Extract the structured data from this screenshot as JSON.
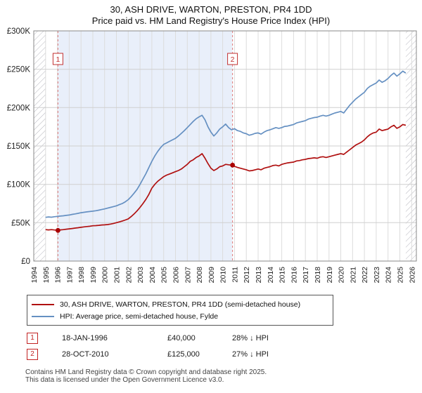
{
  "title": "30, ASH DRIVE, WARTON, PRESTON, PR4 1DD",
  "subtitle": "Price paid vs. HM Land Registry's House Price Index (HPI)",
  "chart_data": {
    "type": "line",
    "x_axis": {
      "min": 1994,
      "max": 2026.4,
      "ticks": [
        1994,
        1995,
        1996,
        1997,
        1998,
        1999,
        2000,
        2001,
        2002,
        2003,
        2004,
        2005,
        2006,
        2007,
        2008,
        2009,
        2010,
        2011,
        2012,
        2013,
        2014,
        2015,
        2016,
        2017,
        2018,
        2019,
        2020,
        2021,
        2022,
        2023,
        2024,
        2025,
        2026
      ]
    },
    "y_axis": {
      "min": 0,
      "max": 300,
      "ticks": [
        {
          "label": "£0",
          "value": 0
        },
        {
          "label": "£50K",
          "value": 50
        },
        {
          "label": "£100K",
          "value": 100
        },
        {
          "label": "£150K",
          "value": 150
        },
        {
          "label": "£200K",
          "value": 200
        },
        {
          "label": "£250K",
          "value": 250
        },
        {
          "label": "£300K",
          "value": 300
        }
      ]
    },
    "grid": true,
    "shaded_region": {
      "from": 1996.05,
      "to": 2010.83,
      "color": "#e9effa"
    },
    "hatch_regions": [
      {
        "from": 1994,
        "to": 1995.0
      },
      {
        "from": 2025.5,
        "to": 2026.4
      }
    ],
    "series": [
      {
        "name": "30, ASH DRIVE, WARTON, PRESTON, PR4 1DD (semi-detached house)",
        "color": "#b01010",
        "start": 1995,
        "step": 0.25,
        "values": [
          41,
          40.6,
          41,
          40.5,
          40.2,
          40.6,
          41,
          41.5,
          42,
          42.4,
          43,
          43.4,
          44,
          44.5,
          45,
          45.4,
          46,
          46.2,
          46.6,
          47,
          47.2,
          47.6,
          48.2,
          49,
          50,
          51,
          52.2,
          53.5,
          55,
          58,
          61.5,
          65.5,
          70,
          75,
          80.5,
          87,
          95,
          100,
          104,
          107,
          110,
          112,
          113.5,
          115,
          116.5,
          118,
          120,
          123,
          126,
          130,
          132,
          135,
          137,
          140,
          134,
          127,
          121,
          118,
          120,
          123,
          124,
          126,
          125.5,
          125,
          123.5,
          122,
          121,
          120,
          119,
          117.5,
          118,
          119,
          120,
          119,
          121,
          122,
          123,
          124.5,
          125,
          124,
          126,
          127,
          128,
          128.5,
          129,
          130.5,
          131,
          132,
          132.5,
          133.5,
          134,
          134.5,
          134,
          135.5,
          136,
          135,
          136,
          137,
          138,
          139,
          140,
          139,
          142,
          145,
          148,
          151,
          153,
          155,
          158,
          162,
          165,
          167,
          168,
          172,
          170,
          171,
          172,
          175,
          177,
          173,
          175,
          178,
          177
        ]
      },
      {
        "name": "HPI: Average price, semi-detached house, Fylde",
        "color": "#6590c2",
        "start": 1995,
        "step": 0.25,
        "values": [
          57,
          57.5,
          57.2,
          57.8,
          58.2,
          58.6,
          59,
          59.5,
          60,
          60.8,
          61.5,
          62.2,
          63,
          63.6,
          64.1,
          64.6,
          65,
          65.6,
          66.3,
          67.1,
          68,
          69,
          70,
          71,
          72,
          73.5,
          75,
          77.2,
          80,
          84,
          88.5,
          93.5,
          100,
          107,
          114,
          122,
          130,
          137,
          143,
          148,
          152,
          154,
          156,
          158,
          160,
          163,
          166.5,
          170,
          174,
          178,
          182,
          185.5,
          188,
          190,
          184,
          175,
          168,
          163,
          167,
          172,
          175,
          178.5,
          174,
          171,
          172.5,
          170,
          169,
          167,
          166,
          164,
          165,
          166.5,
          167,
          165.5,
          168,
          170,
          171,
          172.5,
          174,
          173,
          174,
          175.5,
          176,
          177,
          178,
          180,
          181,
          182,
          183,
          185,
          186,
          187,
          187.5,
          189,
          190,
          189,
          190,
          191.5,
          193,
          194,
          195,
          193,
          198,
          203,
          207,
          211,
          214,
          217,
          220,
          225,
          228,
          230,
          232,
          236,
          233,
          235,
          238,
          242,
          245,
          241,
          244,
          247.5,
          245
        ]
      }
    ],
    "markers": [
      {
        "num": "1",
        "x": 1996.05,
        "y": 40
      },
      {
        "num": "2",
        "x": 2010.83,
        "y": 125
      }
    ],
    "marker_color": "#aa0000",
    "dashed_line_color": "#e07a7a"
  },
  "legend": {
    "items": [
      {
        "label": "30, ASH DRIVE, WARTON, PRESTON, PR4 1DD (semi-detached house)",
        "color": "#b01010"
      },
      {
        "label": "HPI: Average price, semi-detached house, Fylde",
        "color": "#6590c2"
      }
    ]
  },
  "annotations": [
    {
      "num": "1",
      "date": "18-JAN-1996",
      "price": "£40,000",
      "hpi": "28% ↓ HPI"
    },
    {
      "num": "2",
      "date": "28-OCT-2010",
      "price": "£125,000",
      "hpi": "27% ↓ HPI"
    }
  ],
  "footer": {
    "line1": "Contains HM Land Registry data © Crown copyright and database right 2025.",
    "line2": "This data is licensed under the Open Government Licence v3.0."
  }
}
